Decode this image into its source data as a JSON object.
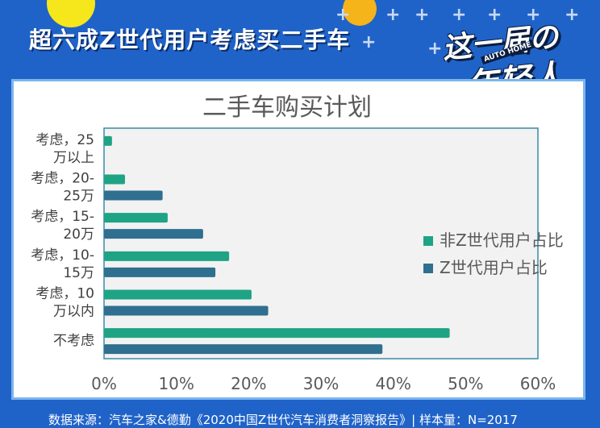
{
  "header": {
    "headline": "超六成Z世代用户考虑买二手车",
    "brand_line1": "这一届の",
    "brand_line2": "年轻人",
    "brand_mini": "AUTO HOME"
  },
  "footer": {
    "source": "数据来源：汽车之家&德勤《2020中国Z世代汽车消费者洞察报告》| 样本量：N=2017"
  },
  "colors": {
    "background": "#1f63c9",
    "non_z_series": "#1fa385",
    "z_series": "#2f6f8f"
  },
  "chart_data": {
    "type": "bar",
    "orientation": "horizontal",
    "title": "二手车购买计划",
    "categories": [
      [
        "考虑，25",
        "万以上"
      ],
      [
        "考虑，20-",
        "25万"
      ],
      [
        "考虑，15-",
        "20万"
      ],
      [
        "考虑，10-",
        "15万"
      ],
      [
        "考虑，10",
        "万以内"
      ],
      [
        "不考虑"
      ]
    ],
    "series": [
      {
        "name": "非Z世代用户占比",
        "color": "#1fa385",
        "values": [
          1.1,
          2.9,
          8.8,
          17.3,
          20.4,
          47.8
        ]
      },
      {
        "name": "Z世代用户占比",
        "color": "#2f6f8f",
        "values": [
          0.0,
          8.1,
          13.7,
          15.4,
          22.7,
          38.5
        ]
      }
    ],
    "xlim": [
      0,
      60
    ],
    "x_ticks": [
      "0%",
      "10%",
      "20%",
      "30%",
      "40%",
      "50%",
      "60%"
    ],
    "legend_position": "right",
    "grid": false
  }
}
